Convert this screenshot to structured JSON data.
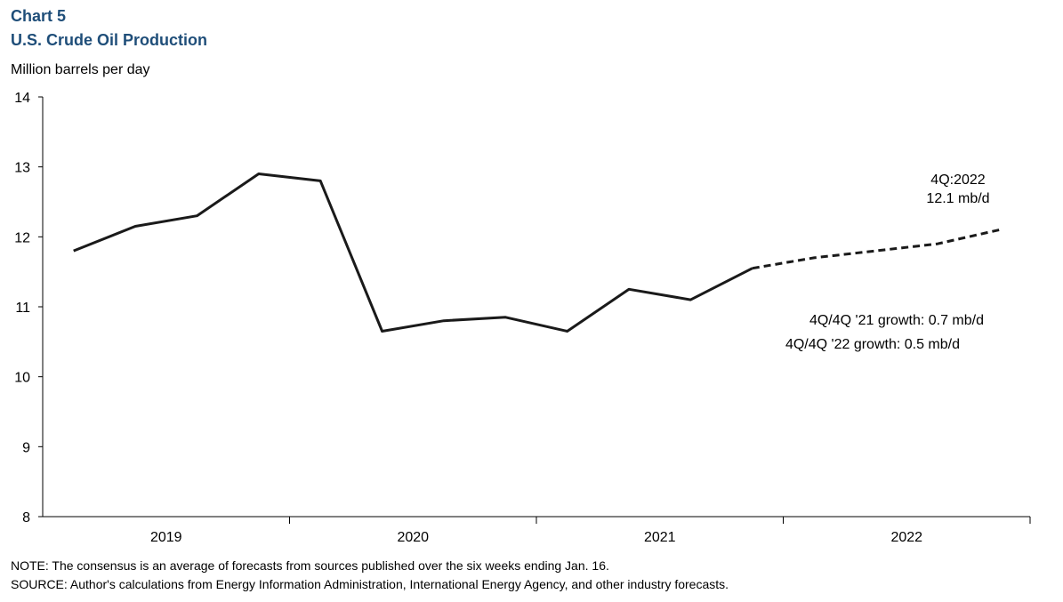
{
  "header": {
    "chart_number": "Chart 5",
    "title": "U.S. Crude Oil Production"
  },
  "chart_data": {
    "type": "line",
    "title": "U.S. Crude Oil Production",
    "ylabel": "Million barrels per day",
    "xlabel": "",
    "ylim": [
      8,
      14
    ],
    "yticks": [
      8,
      9,
      10,
      11,
      12,
      13,
      14
    ],
    "year_labels": [
      "2019",
      "2020",
      "2021",
      "2022"
    ],
    "x_quarters": [
      "2019Q1",
      "2019Q2",
      "2019Q3",
      "2019Q4",
      "2020Q1",
      "2020Q2",
      "2020Q3",
      "2020Q4",
      "2021Q1",
      "2021Q2",
      "2021Q3",
      "2021Q4",
      "2022Q1",
      "2022Q2",
      "2022Q3",
      "2022Q4"
    ],
    "series": [
      {
        "style": "solid",
        "x": [
          "2019Q1",
          "2019Q2",
          "2019Q3",
          "2019Q4",
          "2020Q1",
          "2020Q2",
          "2020Q3",
          "2020Q4",
          "2021Q1",
          "2021Q2",
          "2021Q3",
          "2021Q4"
        ],
        "values": [
          11.8,
          12.15,
          12.3,
          12.9,
          12.8,
          10.65,
          10.8,
          10.85,
          10.65,
          11.25,
          11.1,
          11.55
        ]
      },
      {
        "style": "dashed",
        "x": [
          "2021Q4",
          "2022Q1",
          "2022Q2",
          "2022Q3",
          "2022Q4"
        ],
        "values": [
          11.55,
          11.7,
          11.8,
          11.9,
          12.1
        ]
      }
    ],
    "grid": false,
    "colors": {
      "line": "#1a1a1a",
      "title": "#1f4e79"
    },
    "annotations": {
      "endpoint_line1": "4Q:2022",
      "endpoint_line2": "12.1 mb/d",
      "growth_2021": "4Q/4Q '21 growth: 0.7 mb/d",
      "growth_2022": "4Q/4Q '22 growth: 0.5 mb/d"
    }
  },
  "footer": {
    "note": "NOTE: The consensus is an average of forecasts from sources published over the six weeks ending Jan. 16.",
    "source": "SOURCE: Author's calculations from Energy Information Administration, International Energy Agency, and other industry forecasts."
  }
}
